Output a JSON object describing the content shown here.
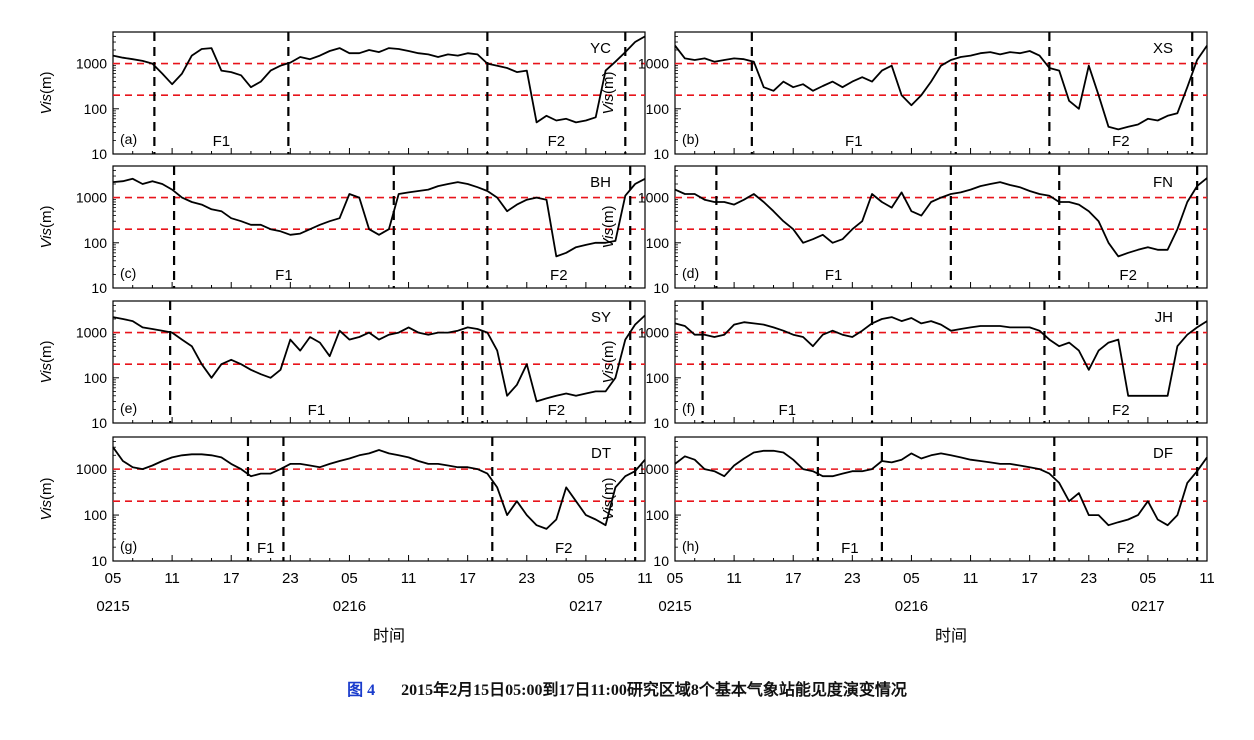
{
  "caption": {
    "figure_number": "图 4",
    "text": "2015年2月15日05:00到17日11:00研究区域8个基本气象站能见度演变情况"
  },
  "x_axis": {
    "label": "时间",
    "range_hours": [
      0,
      54
    ],
    "tick_labels": [
      "05",
      "11",
      "17",
      "23",
      "05",
      "11",
      "17",
      "23",
      "05",
      "11"
    ],
    "date_labels": [
      "0215",
      "0216",
      "0217"
    ]
  },
  "colors": {
    "series": "#000000",
    "thresholds": "#e8141b",
    "markers": "#000000"
  },
  "chart_data": [
    {
      "type": "line",
      "panel": "(a)",
      "station": "YC",
      "ylabel": "Vis(m)",
      "yscale": "log",
      "ylim": [
        10,
        5000
      ],
      "yticks": [
        10,
        100,
        1000
      ],
      "thresholds": [
        1000,
        200
      ],
      "fog_labels": [
        "F1",
        "F2"
      ],
      "event_lines": [
        4.2,
        17.8,
        38.0,
        52.0
      ],
      "series": [
        {
          "x": [
            0,
            1,
            2,
            3,
            4,
            5,
            6,
            7,
            8,
            9,
            10,
            11,
            12,
            13,
            14,
            15,
            16,
            17,
            18,
            19,
            20,
            21,
            22,
            23,
            24,
            25,
            26,
            27,
            28,
            29,
            30,
            31,
            32,
            33,
            34,
            35,
            36,
            37,
            38,
            39,
            40,
            41,
            42,
            43,
            44,
            45,
            46,
            47,
            48,
            49,
            50,
            51,
            52,
            53,
            54
          ],
          "y": [
            1500,
            1350,
            1250,
            1150,
            1000,
            600,
            350,
            600,
            1500,
            2100,
            2200,
            700,
            650,
            550,
            300,
            400,
            700,
            900,
            1050,
            1400,
            1250,
            1500,
            1900,
            2200,
            1700,
            1700,
            2000,
            1800,
            2200,
            2100,
            1900,
            1700,
            1600,
            1400,
            1600,
            1500,
            1700,
            1600,
            1000,
            900,
            800,
            650,
            700,
            50,
            70,
            55,
            60,
            50,
            55,
            65,
            700,
            1100,
            1800,
            3000,
            4000
          ]
        }
      ]
    },
    {
      "type": "line",
      "panel": "(b)",
      "station": "XS",
      "ylabel": "Vis(m)",
      "yscale": "log",
      "ylim": [
        10,
        5000
      ],
      "yticks": [
        10,
        100,
        1000
      ],
      "thresholds": [
        1000,
        200
      ],
      "fog_labels": [
        "F1",
        "F2"
      ],
      "event_lines": [
        7.8,
        28.5,
        38.0,
        52.5
      ],
      "series": [
        {
          "x": [
            0,
            1,
            2,
            3,
            4,
            5,
            6,
            7,
            8,
            9,
            10,
            11,
            12,
            13,
            14,
            15,
            16,
            17,
            18,
            19,
            20,
            21,
            22,
            23,
            24,
            25,
            26,
            27,
            28,
            29,
            30,
            31,
            32,
            33,
            34,
            35,
            36,
            37,
            38,
            39,
            40,
            41,
            42,
            43,
            44,
            45,
            46,
            47,
            48,
            49,
            50,
            51,
            52,
            53,
            54
          ],
          "y": [
            2500,
            1300,
            1200,
            1300,
            1100,
            1200,
            1300,
            1250,
            1100,
            300,
            250,
            400,
            300,
            350,
            250,
            320,
            400,
            300,
            400,
            500,
            400,
            700,
            900,
            200,
            120,
            200,
            400,
            900,
            1200,
            1400,
            1500,
            1700,
            1800,
            1600,
            1800,
            1700,
            1900,
            1500,
            800,
            700,
            150,
            100,
            900,
            200,
            40,
            35,
            40,
            45,
            60,
            55,
            70,
            80,
            300,
            1200,
            2500
          ]
        }
      ]
    },
    {
      "type": "line",
      "panel": "(c)",
      "station": "BH",
      "ylabel": "Vis(m)",
      "yscale": "log",
      "ylim": [
        10,
        5000
      ],
      "yticks": [
        10,
        100,
        1000
      ],
      "thresholds": [
        1000,
        200
      ],
      "fog_labels": [
        "F1",
        "F2"
      ],
      "event_lines": [
        6.2,
        28.5,
        38.0,
        52.5
      ],
      "series": [
        {
          "x": [
            0,
            1,
            2,
            3,
            4,
            5,
            6,
            7,
            8,
            9,
            10,
            11,
            12,
            13,
            14,
            15,
            16,
            17,
            18,
            19,
            20,
            21,
            22,
            23,
            24,
            25,
            26,
            27,
            28,
            29,
            30,
            31,
            32,
            33,
            34,
            35,
            36,
            37,
            38,
            39,
            40,
            41,
            42,
            43,
            44,
            45,
            46,
            47,
            48,
            49,
            50,
            51,
            52,
            53,
            54
          ],
          "y": [
            2200,
            2300,
            2600,
            2000,
            2300,
            2000,
            1500,
            1000,
            800,
            700,
            550,
            500,
            350,
            300,
            250,
            250,
            200,
            180,
            150,
            160,
            200,
            250,
            300,
            350,
            1200,
            1000,
            200,
            150,
            200,
            1200,
            1300,
            1400,
            1500,
            1800,
            2000,
            2200,
            2000,
            1700,
            1400,
            1000,
            500,
            700,
            900,
            1000,
            900,
            50,
            60,
            80,
            90,
            100,
            100,
            110,
            1100,
            2000,
            2600
          ]
        }
      ]
    },
    {
      "type": "line",
      "panel": "(d)",
      "station": "FN",
      "ylabel": "Vis(m)",
      "yscale": "log",
      "ylim": [
        10,
        5000
      ],
      "yticks": [
        10,
        100,
        1000
      ],
      "thresholds": [
        1000,
        200
      ],
      "fog_labels": [
        "F1",
        "F2"
      ],
      "event_lines": [
        4.2,
        28.0,
        39.0,
        53.0
      ],
      "series": [
        {
          "x": [
            0,
            1,
            2,
            3,
            4,
            5,
            6,
            7,
            8,
            9,
            10,
            11,
            12,
            13,
            14,
            15,
            16,
            17,
            18,
            19,
            20,
            21,
            22,
            23,
            24,
            25,
            26,
            27,
            28,
            29,
            30,
            31,
            32,
            33,
            34,
            35,
            36,
            37,
            38,
            39,
            40,
            41,
            42,
            43,
            44,
            45,
            46,
            47,
            48,
            49,
            50,
            51,
            52,
            53,
            54
          ],
          "y": [
            1500,
            1200,
            1200,
            900,
            800,
            800,
            700,
            900,
            1200,
            800,
            500,
            300,
            200,
            100,
            120,
            150,
            100,
            120,
            200,
            300,
            1200,
            800,
            600,
            1300,
            500,
            400,
            800,
            1000,
            1200,
            1300,
            1500,
            1800,
            2000,
            2200,
            1900,
            1700,
            1400,
            1200,
            1100,
            800,
            800,
            700,
            500,
            300,
            100,
            50,
            60,
            70,
            80,
            70,
            70,
            200,
            800,
            1800,
            2700
          ]
        }
      ]
    },
    {
      "type": "line",
      "panel": "(e)",
      "station": "SY",
      "ylabel": "Vis(m)",
      "yscale": "log",
      "ylim": [
        10,
        5000
      ],
      "yticks": [
        10,
        100,
        1000
      ],
      "thresholds": [
        1000,
        200
      ],
      "fog_labels": [
        "F1",
        "F2"
      ],
      "event_lines": [
        5.8,
        35.5,
        37.5,
        52.5
      ],
      "series": [
        {
          "x": [
            0,
            1,
            2,
            3,
            4,
            5,
            6,
            7,
            8,
            9,
            10,
            11,
            12,
            13,
            14,
            15,
            16,
            17,
            18,
            19,
            20,
            21,
            22,
            23,
            24,
            25,
            26,
            27,
            28,
            29,
            30,
            31,
            32,
            33,
            34,
            35,
            36,
            37,
            38,
            39,
            40,
            41,
            42,
            43,
            44,
            45,
            46,
            47,
            48,
            49,
            50,
            51,
            52,
            53,
            54
          ],
          "y": [
            2200,
            2000,
            1800,
            1300,
            1200,
            1100,
            1000,
            700,
            500,
            200,
            100,
            200,
            250,
            200,
            150,
            120,
            100,
            150,
            700,
            400,
            800,
            600,
            300,
            1100,
            700,
            800,
            1000,
            700,
            900,
            1000,
            1300,
            1000,
            900,
            1000,
            1000,
            1100,
            1300,
            1200,
            1000,
            400,
            40,
            70,
            200,
            30,
            35,
            40,
            45,
            40,
            45,
            50,
            50,
            100,
            700,
            1500,
            2400
          ]
        }
      ]
    },
    {
      "type": "line",
      "panel": "(f)",
      "station": "JH",
      "ylabel": "Vis(m)",
      "yscale": "log",
      "ylim": [
        10,
        5000
      ],
      "yticks": [
        10,
        100,
        1000
      ],
      "thresholds": [
        1000,
        200
      ],
      "fog_labels": [
        "F1",
        "F2"
      ],
      "event_lines": [
        2.8,
        20.0,
        37.5,
        53.0
      ],
      "series": [
        {
          "x": [
            0,
            1,
            2,
            3,
            4,
            5,
            6,
            7,
            8,
            9,
            10,
            11,
            12,
            13,
            14,
            15,
            16,
            17,
            18,
            19,
            20,
            21,
            22,
            23,
            24,
            25,
            26,
            27,
            28,
            29,
            30,
            31,
            32,
            33,
            34,
            35,
            36,
            37,
            38,
            39,
            40,
            41,
            42,
            43,
            44,
            45,
            46,
            47,
            48,
            49,
            50,
            51,
            52,
            53,
            54
          ],
          "y": [
            1600,
            1400,
            900,
            900,
            800,
            900,
            1500,
            1700,
            1600,
            1500,
            1300,
            1100,
            900,
            800,
            500,
            900,
            1100,
            900,
            800,
            1100,
            1600,
            2000,
            2200,
            1800,
            2100,
            1600,
            1800,
            1500,
            1100,
            1200,
            1300,
            1400,
            1400,
            1400,
            1300,
            1300,
            1300,
            1100,
            700,
            500,
            600,
            400,
            150,
            400,
            600,
            700,
            40,
            40,
            40,
            40,
            40,
            500,
            900,
            1300,
            1800
          ]
        }
      ]
    },
    {
      "type": "line",
      "panel": "(g)",
      "station": "DT",
      "ylabel": "Vis(m)",
      "yscale": "log",
      "ylim": [
        10,
        5000
      ],
      "yticks": [
        10,
        100,
        1000
      ],
      "thresholds": [
        1000,
        200
      ],
      "fog_labels": [
        "F1",
        "F2"
      ],
      "event_lines": [
        13.7,
        17.3,
        38.5,
        53.0
      ],
      "series": [
        {
          "x": [
            0,
            1,
            2,
            3,
            4,
            5,
            6,
            7,
            8,
            9,
            10,
            11,
            12,
            13,
            14,
            15,
            16,
            17,
            18,
            19,
            20,
            21,
            22,
            23,
            24,
            25,
            26,
            27,
            28,
            29,
            30,
            31,
            32,
            33,
            34,
            35,
            36,
            37,
            38,
            39,
            40,
            41,
            42,
            43,
            44,
            45,
            46,
            47,
            48,
            49,
            50,
            51,
            52,
            53,
            54
          ],
          "y": [
            3000,
            1500,
            1100,
            1000,
            1200,
            1500,
            1800,
            2000,
            2100,
            2100,
            2000,
            1800,
            1300,
            1000,
            700,
            800,
            800,
            1000,
            1300,
            1300,
            1200,
            1100,
            1300,
            1500,
            1700,
            2000,
            2200,
            2600,
            2200,
            2000,
            1800,
            1500,
            1300,
            1300,
            1200,
            1100,
            1100,
            1000,
            800,
            400,
            100,
            200,
            100,
            60,
            50,
            80,
            400,
            200,
            100,
            80,
            60,
            400,
            700,
            900,
            1600
          ]
        }
      ]
    },
    {
      "type": "line",
      "panel": "(h)",
      "station": "DF",
      "ylabel": "Vis(m)",
      "yscale": "log",
      "ylim": [
        10,
        5000
      ],
      "yticks": [
        10,
        100,
        1000
      ],
      "thresholds": [
        1000,
        200
      ],
      "fog_labels": [
        "F1",
        "F2"
      ],
      "event_lines": [
        14.5,
        21.0,
        38.5,
        53.0
      ],
      "series": [
        {
          "x": [
            0,
            1,
            2,
            3,
            4,
            5,
            6,
            7,
            8,
            9,
            10,
            11,
            12,
            13,
            14,
            15,
            16,
            17,
            18,
            19,
            20,
            21,
            22,
            23,
            24,
            25,
            26,
            27,
            28,
            29,
            30,
            31,
            32,
            33,
            34,
            35,
            36,
            37,
            38,
            39,
            40,
            41,
            42,
            43,
            44,
            45,
            46,
            47,
            48,
            49,
            50,
            51,
            52,
            53,
            54
          ],
          "y": [
            1300,
            1900,
            1600,
            1000,
            900,
            700,
            1200,
            1700,
            2300,
            2500,
            2500,
            2300,
            1600,
            1000,
            900,
            700,
            700,
            800,
            900,
            900,
            1000,
            1500,
            1400,
            1600,
            2200,
            1700,
            2000,
            2200,
            2000,
            1800,
            1600,
            1500,
            1400,
            1300,
            1300,
            1200,
            1100,
            1000,
            800,
            500,
            200,
            300,
            100,
            100,
            60,
            70,
            80,
            100,
            200,
            80,
            60,
            100,
            500,
            900,
            1800
          ]
        }
      ]
    }
  ]
}
